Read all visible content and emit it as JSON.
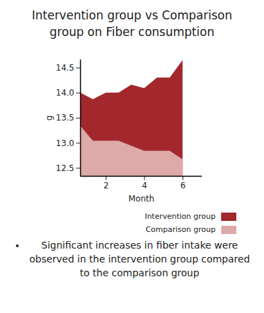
{
  "chart_data": {
    "type": "area",
    "title": "Intervention group vs Comparison group on Fiber consumption",
    "x_label": "Month",
    "y_label": "g",
    "x": [
      0.67,
      1.33,
      2,
      2.67,
      3.33,
      4,
      4.67,
      5.33,
      6
    ],
    "series": [
      {
        "name": "Intervention group",
        "color": "#a3282e",
        "values": [
          14.0,
          13.87,
          14.0,
          14.0,
          14.16,
          14.09,
          14.3,
          14.3,
          14.65
        ]
      },
      {
        "name": "Comparison group",
        "color": "#ddaaa8",
        "values": [
          13.34,
          13.04,
          13.04,
          13.04,
          12.94,
          12.84,
          12.84,
          12.84,
          12.67
        ]
      }
    ],
    "xlim": [
      0.67,
      7
    ],
    "xticks": [
      2,
      4,
      6
    ],
    "ylim": [
      12.34,
      14.66
    ],
    "yticks": [
      12.5,
      {
        "value": 13,
        "label": "13.0"
      },
      13.5,
      {
        "value": 14,
        "label": "14.0"
      },
      14.5
    ],
    "stacked": false,
    "grid": false,
    "legend": "bottom-right",
    "annotations": [
      "Significant increases in fiber intake were observed in the intervention group compared to the comparison group"
    ]
  }
}
